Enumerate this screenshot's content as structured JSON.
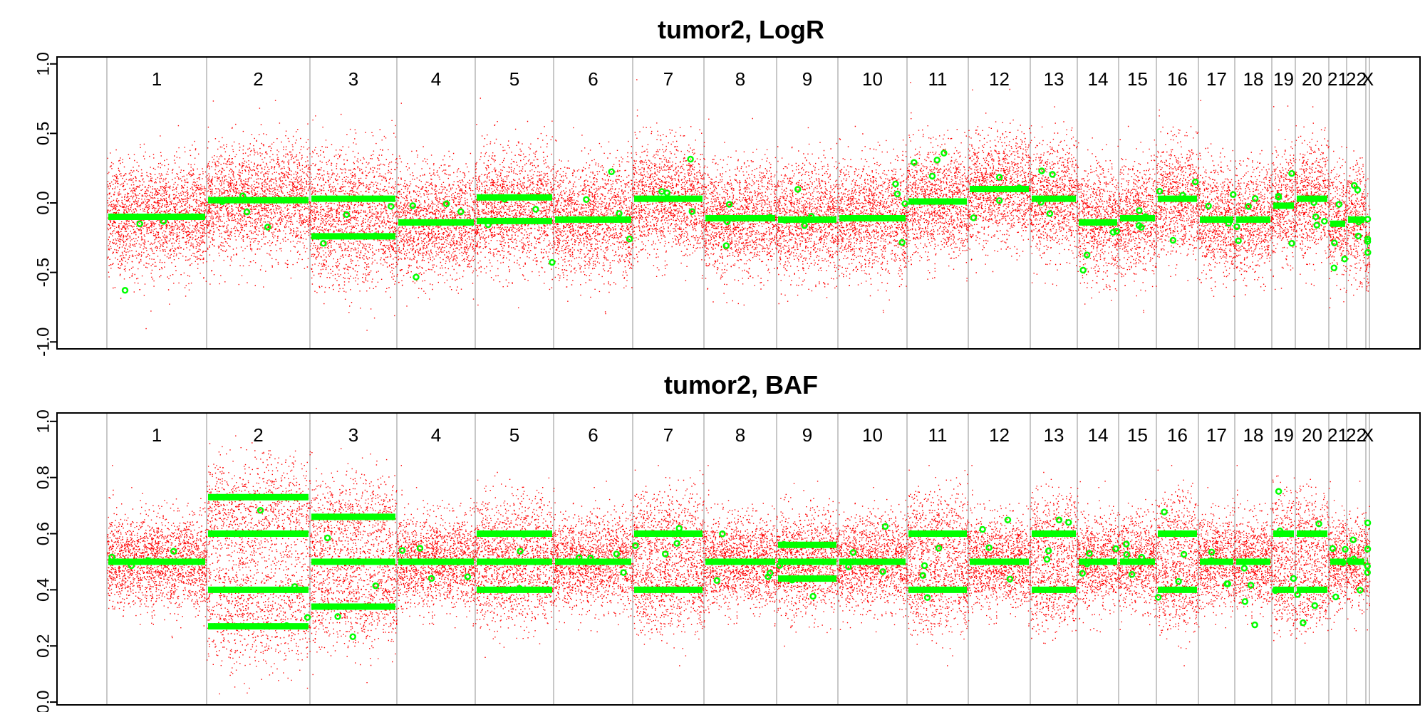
{
  "chart_data": [
    {
      "type": "scatter",
      "title": "tumor2, LogR",
      "xlabel": "",
      "ylabel": "",
      "ylim": [
        -1.05,
        1.05
      ],
      "yticks": [
        "-1.0",
        "-0.5",
        "0.0",
        "0.5",
        "1.0"
      ],
      "ytick_values": [
        -1.0,
        -0.5,
        0.0,
        0.5,
        1.0
      ],
      "grid": false,
      "raw_point_color": "#ff0000",
      "segment_color": "#00ff00",
      "separator_color": "#c8c8c8",
      "chromosomes": [
        "1",
        "2",
        "3",
        "4",
        "5",
        "6",
        "7",
        "8",
        "9",
        "10",
        "11",
        "12",
        "13",
        "14",
        "15",
        "16",
        "17",
        "18",
        "19",
        "20",
        "21",
        "22",
        "X"
      ],
      "segments": [
        {
          "chrom": "1",
          "values": [
            -0.1
          ]
        },
        {
          "chrom": "2",
          "values": [
            0.02
          ]
        },
        {
          "chrom": "3",
          "values": [
            -0.24,
            0.03
          ]
        },
        {
          "chrom": "4",
          "values": [
            -0.14
          ]
        },
        {
          "chrom": "5",
          "values": [
            -0.13,
            0.04
          ]
        },
        {
          "chrom": "6",
          "values": [
            -0.12
          ]
        },
        {
          "chrom": "7",
          "values": [
            0.03
          ]
        },
        {
          "chrom": "8",
          "values": [
            -0.11
          ]
        },
        {
          "chrom": "9",
          "values": [
            -0.12
          ]
        },
        {
          "chrom": "10",
          "values": [
            -0.11
          ]
        },
        {
          "chrom": "11",
          "values": [
            0.01
          ]
        },
        {
          "chrom": "12",
          "values": [
            0.1
          ]
        },
        {
          "chrom": "13",
          "values": [
            0.03
          ]
        },
        {
          "chrom": "14",
          "values": [
            -0.14
          ]
        },
        {
          "chrom": "15",
          "values": [
            -0.11
          ]
        },
        {
          "chrom": "16",
          "values": [
            0.03
          ]
        },
        {
          "chrom": "17",
          "values": [
            -0.12
          ]
        },
        {
          "chrom": "18",
          "values": [
            -0.12
          ]
        },
        {
          "chrom": "19",
          "values": [
            -0.02
          ]
        },
        {
          "chrom": "20",
          "values": [
            0.03
          ]
        },
        {
          "chrom": "21",
          "values": [
            -0.15
          ]
        },
        {
          "chrom": "22",
          "values": [
            -0.12
          ]
        },
        {
          "chrom": "X",
          "values": [
            -0.3
          ]
        }
      ],
      "noise_sd": 0.2
    },
    {
      "type": "scatter",
      "title": "tumor2, BAF",
      "xlabel": "",
      "ylabel": "",
      "ylim": [
        -0.01,
        1.03
      ],
      "yticks": [
        "0.0",
        "0.2",
        "0.4",
        "0.6",
        "0.8",
        "1.0"
      ],
      "ytick_values": [
        0.0,
        0.2,
        0.4,
        0.6,
        0.8,
        1.0
      ],
      "grid": false,
      "raw_point_color": "#ff0000",
      "segment_color": "#00ff00",
      "separator_color": "#c8c8c8",
      "chromosomes": [
        "1",
        "2",
        "3",
        "4",
        "5",
        "6",
        "7",
        "8",
        "9",
        "10",
        "11",
        "12",
        "13",
        "14",
        "15",
        "16",
        "17",
        "18",
        "19",
        "20",
        "21",
        "22",
        "X"
      ],
      "segments": [
        {
          "chrom": "1",
          "values": [
            0.5
          ]
        },
        {
          "chrom": "2",
          "values": [
            0.4,
            0.6,
            0.27,
            0.73
          ]
        },
        {
          "chrom": "3",
          "values": [
            0.34,
            0.66,
            0.5
          ]
        },
        {
          "chrom": "4",
          "values": [
            0.5
          ]
        },
        {
          "chrom": "5",
          "values": [
            0.5,
            0.4,
            0.6
          ]
        },
        {
          "chrom": "6",
          "values": [
            0.5
          ]
        },
        {
          "chrom": "7",
          "values": [
            0.4,
            0.6
          ]
        },
        {
          "chrom": "8",
          "values": [
            0.5
          ]
        },
        {
          "chrom": "9",
          "values": [
            0.5,
            0.44,
            0.56
          ]
        },
        {
          "chrom": "10",
          "values": [
            0.5
          ]
        },
        {
          "chrom": "11",
          "values": [
            0.4,
            0.6
          ]
        },
        {
          "chrom": "12",
          "values": [
            0.5
          ]
        },
        {
          "chrom": "13",
          "values": [
            0.4,
            0.6
          ]
        },
        {
          "chrom": "14",
          "values": [
            0.5
          ]
        },
        {
          "chrom": "15",
          "values": [
            0.5
          ]
        },
        {
          "chrom": "16",
          "values": [
            0.4,
            0.6
          ]
        },
        {
          "chrom": "17",
          "values": [
            0.5
          ]
        },
        {
          "chrom": "18",
          "values": [
            0.5
          ]
        },
        {
          "chrom": "19",
          "values": [
            0.4,
            0.6
          ]
        },
        {
          "chrom": "20",
          "values": [
            0.4,
            0.6
          ]
        },
        {
          "chrom": "21",
          "values": [
            0.5
          ]
        },
        {
          "chrom": "22",
          "values": [
            0.5
          ]
        },
        {
          "chrom": "X",
          "values": [
            0.5
          ]
        }
      ],
      "noise_sd": 0.08
    }
  ]
}
